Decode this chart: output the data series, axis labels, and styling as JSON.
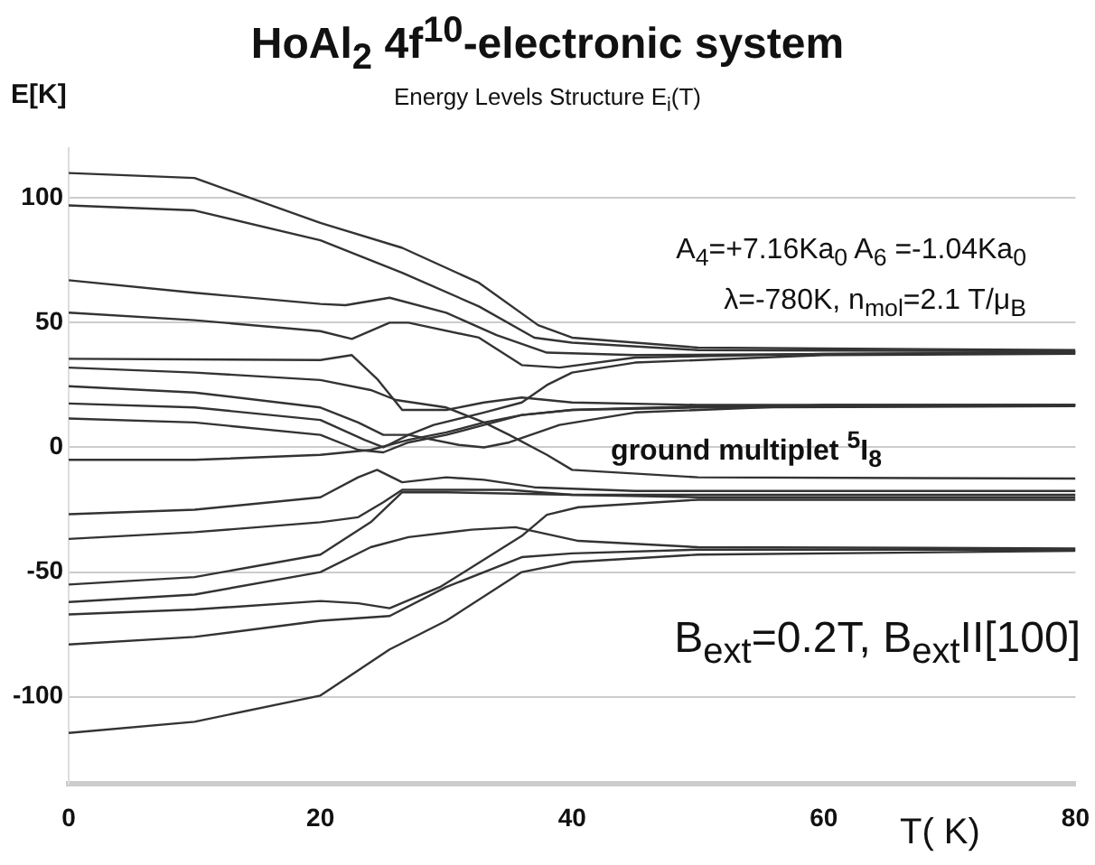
{
  "chart_data": {
    "type": "line",
    "title": "HoAl$_{2}$ 4f$^{10}$-electronic system",
    "subtitle": "Energy Levels Structure E$_{i}$(T)",
    "xlabel": "T( K)",
    "ylabel": "E[K]",
    "annotations": [
      "A$_{4}$=+7.16Ka$_{0}$  A$_{6}$ =-1.04Ka$_{0}$",
      "λ=-780K,    n$_{mol}$=2.1 T/μ$_{B}$",
      "ground multiplet $^{5}$I$_{8}$",
      "B$_{ext}$=0.2T, B$_{ext}$II[100]"
    ],
    "xlim": [
      0,
      80
    ],
    "xticks": [
      0,
      20,
      40,
      60,
      80
    ],
    "ylim": [
      -135,
      120
    ],
    "yticks": [
      -100,
      -50,
      0,
      50,
      100
    ],
    "grid": "y",
    "legend": false,
    "marker": "none",
    "line_style": "solid",
    "series": [
      {
        "color": "#333333",
        "x": [
          0,
          10,
          20,
          26.5,
          32.6,
          37.3,
          40,
          50,
          80
        ],
        "values": [
          110,
          108,
          90,
          80,
          66,
          49,
          44,
          40,
          39
        ]
      },
      {
        "color": "#333333",
        "x": [
          0,
          10,
          20,
          26.5,
          32.6,
          37,
          40,
          50,
          80
        ],
        "values": [
          97,
          95,
          83,
          70,
          56.5,
          44,
          42,
          39,
          38.5
        ]
      },
      {
        "color": "#333333",
        "x": [
          0,
          10,
          20,
          22,
          25.5,
          30,
          34,
          38,
          45,
          80
        ],
        "values": [
          67,
          62,
          57.5,
          57,
          60,
          54,
          45,
          38,
          37,
          38
        ]
      },
      {
        "color": "#333333",
        "x": [
          0,
          10,
          20,
          22.5,
          25.5,
          27,
          32.6,
          36,
          39,
          45,
          60,
          80
        ],
        "values": [
          54,
          51,
          46.6,
          43.5,
          50,
          50,
          44,
          33,
          32,
          36,
          37.5,
          38
        ]
      },
      {
        "color": "#333333",
        "x": [
          0,
          20,
          22.5,
          24.5,
          26.5,
          30,
          33,
          36,
          40,
          50,
          80
        ],
        "values": [
          35.5,
          35,
          37,
          27.5,
          15,
          15,
          18,
          20,
          18,
          17,
          17
        ]
      },
      {
        "color": "#333333",
        "x": [
          0,
          10,
          20,
          24,
          26,
          30,
          33,
          35,
          38,
          40,
          50,
          80
        ],
        "values": [
          32,
          30,
          27,
          23,
          19,
          16,
          10,
          5,
          -3,
          -9,
          -12,
          -12.5
        ]
      },
      {
        "color": "#333333",
        "x": [
          0,
          10,
          20,
          23,
          25,
          27,
          31,
          33,
          35,
          39,
          45,
          60,
          80
        ],
        "values": [
          24.5,
          22,
          16,
          10,
          5,
          5,
          1,
          0,
          2,
          9,
          14,
          17,
          17
        ]
      },
      {
        "color": "#333333",
        "x": [
          0,
          10,
          20,
          23.5,
          25,
          27,
          29,
          33,
          36,
          38,
          40,
          45,
          60,
          80
        ],
        "values": [
          17.6,
          16,
          11,
          3,
          0,
          5,
          9,
          14,
          18,
          25,
          30,
          34,
          37,
          37.5
        ]
      },
      {
        "color": "#333333",
        "x": [
          0,
          10,
          20,
          23,
          25,
          27,
          30,
          33,
          36,
          40,
          50,
          80
        ],
        "values": [
          11.6,
          10,
          5,
          -1,
          -2,
          2,
          5,
          9,
          13,
          15,
          16.5,
          17
        ]
      },
      {
        "color": "#333333",
        "x": [
          0,
          10,
          20,
          24,
          27,
          30,
          33,
          36,
          40,
          50,
          80
        ],
        "values": [
          -5,
          -5,
          -3,
          -1,
          3,
          6,
          10,
          13,
          15,
          16,
          16.5
        ]
      },
      {
        "color": "#333333",
        "x": [
          0,
          10,
          20,
          23,
          24.5,
          26.5,
          30,
          33,
          37,
          45,
          80
        ],
        "values": [
          -26.8,
          -25,
          -20,
          -12,
          -9,
          -14,
          -12,
          -13,
          -16,
          -17.5,
          -17.5
        ]
      },
      {
        "color": "#333333",
        "x": [
          0,
          10,
          20,
          23,
          25,
          26.5,
          30,
          35,
          40,
          50,
          80
        ],
        "values": [
          -36.7,
          -34,
          -30,
          -28,
          -22,
          -17,
          -17,
          -17,
          -19,
          -20,
          -20
        ]
      },
      {
        "color": "#333333",
        "x": [
          0,
          10,
          20,
          24,
          26.5,
          30,
          40,
          80
        ],
        "values": [
          -55,
          -52,
          -43,
          -30,
          -18,
          -18,
          -19,
          -19
        ]
      },
      {
        "color": "#333333",
        "x": [
          0,
          10,
          20,
          24,
          27,
          32,
          35.5,
          40.5,
          50,
          80
        ],
        "values": [
          -62,
          -59,
          -50,
          -40,
          -36,
          -33,
          -32,
          -37.5,
          -40,
          -40.5
        ]
      },
      {
        "color": "#333333",
        "x": [
          0,
          10,
          20,
          23,
          25.5,
          29.5,
          33,
          36,
          38,
          40.5,
          50,
          80
        ],
        "values": [
          -67,
          -65,
          -61.6,
          -62.5,
          -64.5,
          -56,
          -45,
          -35.5,
          -27,
          -24,
          -21,
          -21
        ]
      },
      {
        "color": "#333333",
        "x": [
          0,
          10,
          20,
          25.5,
          30,
          36,
          40,
          50,
          80
        ],
        "values": [
          -79,
          -76,
          -69.5,
          -67.6,
          -56,
          -44,
          -42.5,
          -41,
          -41
        ]
      },
      {
        "color": "#333333",
        "x": [
          0,
          10,
          20,
          25.5,
          30,
          36,
          40,
          50,
          80
        ],
        "values": [
          -114.5,
          -110,
          -99.5,
          -81,
          -69.5,
          -50,
          -46,
          -43,
          -41.5
        ]
      }
    ]
  }
}
